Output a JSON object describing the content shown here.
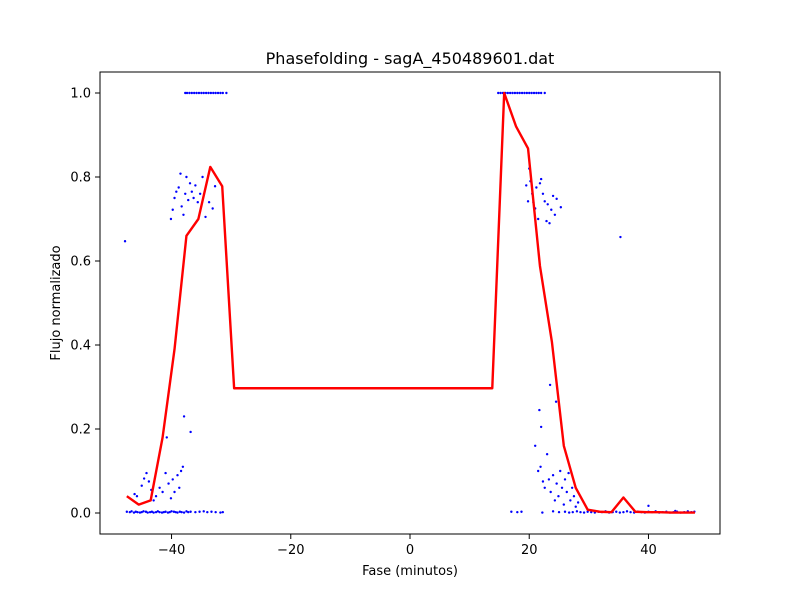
{
  "chart_data": {
    "type": "scatter",
    "title": "Phasefolding - sagA_450489601.dat",
    "xlabel": "Fase (minutos)",
    "ylabel": "Flujo normalizado",
    "xlim": [
      -52,
      52
    ],
    "ylim": [
      -0.05,
      1.05
    ],
    "xticks": [
      -40,
      -20,
      0,
      20,
      40
    ],
    "yticks": [
      0.0,
      0.2,
      0.4,
      0.6,
      0.8,
      1.0
    ],
    "xtick_labels": [
      "−40",
      "−20",
      "0",
      "20",
      "40"
    ],
    "ytick_labels": [
      "0.0",
      "0.2",
      "0.4",
      "0.6",
      "0.8",
      "1.0"
    ],
    "grid": false,
    "colors": {
      "points": "#0000ff",
      "line": "#ff0000"
    },
    "series": [
      {
        "kind": "scatter",
        "points": [
          [
            -47.8,
            0.647
          ],
          [
            -47.5,
            0.003
          ],
          [
            -47.0,
            0.002
          ],
          [
            -46.7,
            0.004
          ],
          [
            -46.3,
            0.001
          ],
          [
            -46.0,
            0.003
          ],
          [
            -45.7,
            0.002
          ],
          [
            -45.3,
            0.001
          ],
          [
            -45.0,
            0.002
          ],
          [
            -44.7,
            0.004
          ],
          [
            -44.3,
            0.003
          ],
          [
            -44.0,
            0.001
          ],
          [
            -43.6,
            0.002
          ],
          [
            -43.3,
            0.003
          ],
          [
            -43.0,
            0.001
          ],
          [
            -42.6,
            0.002
          ],
          [
            -42.3,
            0.004
          ],
          [
            -42.0,
            0.002
          ],
          [
            -41.6,
            0.001
          ],
          [
            -41.3,
            0.002
          ],
          [
            -41.0,
            0.003
          ],
          [
            -40.6,
            0.001
          ],
          [
            -40.3,
            0.002
          ],
          [
            -40.0,
            0.004
          ],
          [
            -39.6,
            0.003
          ],
          [
            -39.3,
            0.002
          ],
          [
            -39.0,
            0.001
          ],
          [
            -38.6,
            0.003
          ],
          [
            -38.3,
            0.002
          ],
          [
            -37.9,
            0.001
          ],
          [
            -37.5,
            0.004
          ],
          [
            -37.2,
            0.002
          ],
          [
            -36.8,
            0.003
          ],
          [
            -36.0,
            0.002
          ],
          [
            -35.3,
            0.003
          ],
          [
            -34.6,
            0.004
          ],
          [
            -34.0,
            0.002
          ],
          [
            -33.3,
            0.003
          ],
          [
            -32.6,
            0.002
          ],
          [
            -31.8,
            0.001
          ],
          [
            -31.4,
            0.002
          ],
          [
            -46.2,
            0.045
          ],
          [
            -45.8,
            0.04
          ],
          [
            -45.0,
            0.065
          ],
          [
            -44.6,
            0.082
          ],
          [
            -44.2,
            0.095
          ],
          [
            -43.8,
            0.075
          ],
          [
            -43.4,
            0.055
          ],
          [
            -43.0,
            0.03
          ],
          [
            -42.6,
            0.04
          ],
          [
            -42.0,
            0.06
          ],
          [
            -41.5,
            0.05
          ],
          [
            -41.0,
            0.095
          ],
          [
            -40.8,
            0.18
          ],
          [
            -40.5,
            0.07
          ],
          [
            -40.1,
            0.035
          ],
          [
            -39.8,
            0.08
          ],
          [
            -39.5,
            0.05
          ],
          [
            -39.0,
            0.09
          ],
          [
            -38.7,
            0.06
          ],
          [
            -38.4,
            0.1
          ],
          [
            -38.1,
            0.11
          ],
          [
            -37.9,
            0.23
          ],
          [
            -36.8,
            0.193
          ],
          [
            -40.1,
            0.7
          ],
          [
            -39.8,
            0.722
          ],
          [
            -39.5,
            0.75
          ],
          [
            -39.2,
            0.765
          ],
          [
            -38.8,
            0.775
          ],
          [
            -38.5,
            0.808
          ],
          [
            -38.3,
            0.73
          ],
          [
            -38.0,
            0.71
          ],
          [
            -37.7,
            0.76
          ],
          [
            -37.5,
            0.8
          ],
          [
            -37.2,
            0.745
          ],
          [
            -36.9,
            0.785
          ],
          [
            -36.6,
            0.765
          ],
          [
            -36.3,
            0.75
          ],
          [
            -36.0,
            0.78
          ],
          [
            -35.6,
            0.74
          ],
          [
            -35.2,
            0.76
          ],
          [
            -34.8,
            0.8
          ],
          [
            -34.3,
            0.705
          ],
          [
            -33.7,
            0.74
          ],
          [
            -33.1,
            0.725
          ],
          [
            -32.7,
            0.778
          ],
          [
            -37.7,
            1.0
          ],
          [
            -37.4,
            1.0
          ],
          [
            -37.0,
            1.0
          ],
          [
            -36.6,
            1.0
          ],
          [
            -36.2,
            1.0
          ],
          [
            -35.8,
            1.0
          ],
          [
            -35.4,
            1.0
          ],
          [
            -35.0,
            1.0
          ],
          [
            -34.6,
            1.0
          ],
          [
            -34.2,
            1.0
          ],
          [
            -33.8,
            1.0
          ],
          [
            -33.4,
            1.0
          ],
          [
            -33.0,
            1.0
          ],
          [
            -32.6,
            1.0
          ],
          [
            -32.2,
            1.0
          ],
          [
            -31.8,
            1.0
          ],
          [
            -31.4,
            1.0
          ],
          [
            -30.8,
            1.0
          ],
          [
            14.8,
            1.0
          ],
          [
            15.2,
            1.0
          ],
          [
            15.6,
            1.0
          ],
          [
            16.0,
            1.0
          ],
          [
            16.4,
            1.0
          ],
          [
            16.8,
            1.0
          ],
          [
            17.2,
            1.0
          ],
          [
            17.6,
            1.0
          ],
          [
            18.0,
            1.0
          ],
          [
            18.4,
            1.0
          ],
          [
            18.8,
            1.0
          ],
          [
            19.2,
            1.0
          ],
          [
            19.6,
            1.0
          ],
          [
            20.0,
            1.0
          ],
          [
            20.4,
            1.0
          ],
          [
            20.8,
            1.0
          ],
          [
            21.2,
            1.0
          ],
          [
            21.6,
            1.0
          ],
          [
            22.0,
            1.0
          ],
          [
            22.6,
            1.0
          ],
          [
            19.5,
            0.78
          ],
          [
            19.8,
            0.742
          ],
          [
            20.0,
            0.82
          ],
          [
            20.2,
            0.79
          ],
          [
            20.5,
            0.76
          ],
          [
            20.7,
            0.74
          ],
          [
            21.0,
            0.725
          ],
          [
            21.2,
            0.775
          ],
          [
            21.5,
            0.7
          ],
          [
            21.8,
            0.785
          ],
          [
            22.0,
            0.795
          ],
          [
            22.3,
            0.76
          ],
          [
            22.6,
            0.742
          ],
          [
            22.9,
            0.695
          ],
          [
            23.1,
            0.735
          ],
          [
            23.4,
            0.69
          ],
          [
            23.7,
            0.722
          ],
          [
            24.0,
            0.755
          ],
          [
            24.3,
            0.71
          ],
          [
            24.6,
            0.748
          ],
          [
            25.3,
            0.728
          ],
          [
            21.7,
            0.245
          ],
          [
            23.5,
            0.305
          ],
          [
            24.5,
            0.265
          ],
          [
            22.0,
            0.205
          ],
          [
            21.0,
            0.16
          ],
          [
            21.5,
            0.1
          ],
          [
            21.9,
            0.11
          ],
          [
            22.3,
            0.075
          ],
          [
            22.6,
            0.06
          ],
          [
            23.0,
            0.14
          ],
          [
            23.3,
            0.08
          ],
          [
            23.6,
            0.05
          ],
          [
            24.0,
            0.09
          ],
          [
            24.3,
            0.03
          ],
          [
            24.6,
            0.07
          ],
          [
            24.9,
            0.04
          ],
          [
            25.2,
            0.1
          ],
          [
            25.5,
            0.06
          ],
          [
            25.8,
            0.02
          ],
          [
            26.0,
            0.08
          ],
          [
            26.3,
            0.05
          ],
          [
            26.6,
            0.095
          ],
          [
            26.9,
            0.03
          ],
          [
            27.2,
            0.06
          ],
          [
            27.5,
            0.04
          ],
          [
            27.8,
            0.015
          ],
          [
            28.2,
            0.025
          ],
          [
            17.0,
            0.003
          ],
          [
            18.0,
            0.002
          ],
          [
            18.7,
            0.003
          ],
          [
            22.2,
            0.001
          ],
          [
            24.0,
            0.004
          ],
          [
            25.0,
            0.002
          ],
          [
            26.0,
            0.003
          ],
          [
            26.7,
            0.001
          ],
          [
            27.3,
            0.002
          ],
          [
            28.0,
            0.004
          ],
          [
            28.6,
            0.002
          ],
          [
            29.2,
            0.001
          ],
          [
            29.8,
            0.003
          ],
          [
            30.4,
            0.002
          ],
          [
            31.0,
            0.001
          ],
          [
            31.6,
            0.003
          ],
          [
            32.2,
            0.002
          ],
          [
            32.8,
            0.004
          ],
          [
            33.4,
            0.001
          ],
          [
            34.0,
            0.002
          ],
          [
            34.6,
            0.003
          ],
          [
            35.2,
            0.001
          ],
          [
            35.8,
            0.002
          ],
          [
            36.4,
            0.004
          ],
          [
            37.0,
            0.002
          ],
          [
            37.6,
            0.001
          ],
          [
            38.2,
            0.003
          ],
          [
            38.8,
            0.002
          ],
          [
            39.4,
            0.001
          ],
          [
            40.0,
            0.003
          ],
          [
            40.6,
            0.002
          ],
          [
            41.2,
            0.004
          ],
          [
            41.8,
            0.001
          ],
          [
            42.4,
            0.002
          ],
          [
            43.0,
            0.003
          ],
          [
            43.6,
            0.001
          ],
          [
            44.2,
            0.002
          ],
          [
            44.8,
            0.003
          ],
          [
            45.4,
            0.001
          ],
          [
            46.0,
            0.002
          ],
          [
            46.6,
            0.004
          ],
          [
            47.2,
            0.002
          ],
          [
            47.7,
            0.003
          ],
          [
            35.3,
            0.657
          ],
          [
            40.0,
            0.017
          ],
          [
            44.5,
            0.005
          ]
        ]
      },
      {
        "kind": "line",
        "points": [
          [
            -47.5,
            0.04
          ],
          [
            -45.5,
            0.02
          ],
          [
            -43.5,
            0.03
          ],
          [
            -41.5,
            0.18
          ],
          [
            -39.5,
            0.39
          ],
          [
            -37.5,
            0.66
          ],
          [
            -35.5,
            0.7
          ],
          [
            -33.5,
            0.824
          ],
          [
            -31.5,
            0.778
          ],
          [
            -29.5,
            0.297
          ],
          [
            13.8,
            0.297
          ],
          [
            15.8,
            1.0
          ],
          [
            17.8,
            0.92
          ],
          [
            19.8,
            0.868
          ],
          [
            21.8,
            0.588
          ],
          [
            23.8,
            0.408
          ],
          [
            25.8,
            0.16
          ],
          [
            27.8,
            0.06
          ],
          [
            29.8,
            0.008
          ],
          [
            31.8,
            0.003
          ],
          [
            33.8,
            0.002
          ],
          [
            35.8,
            0.037
          ],
          [
            37.8,
            0.003
          ],
          [
            39.8,
            0.002
          ],
          [
            41.8,
            0.002
          ],
          [
            43.8,
            0.001
          ],
          [
            45.8,
            0.001
          ],
          [
            47.8,
            0.001
          ]
        ]
      }
    ]
  }
}
